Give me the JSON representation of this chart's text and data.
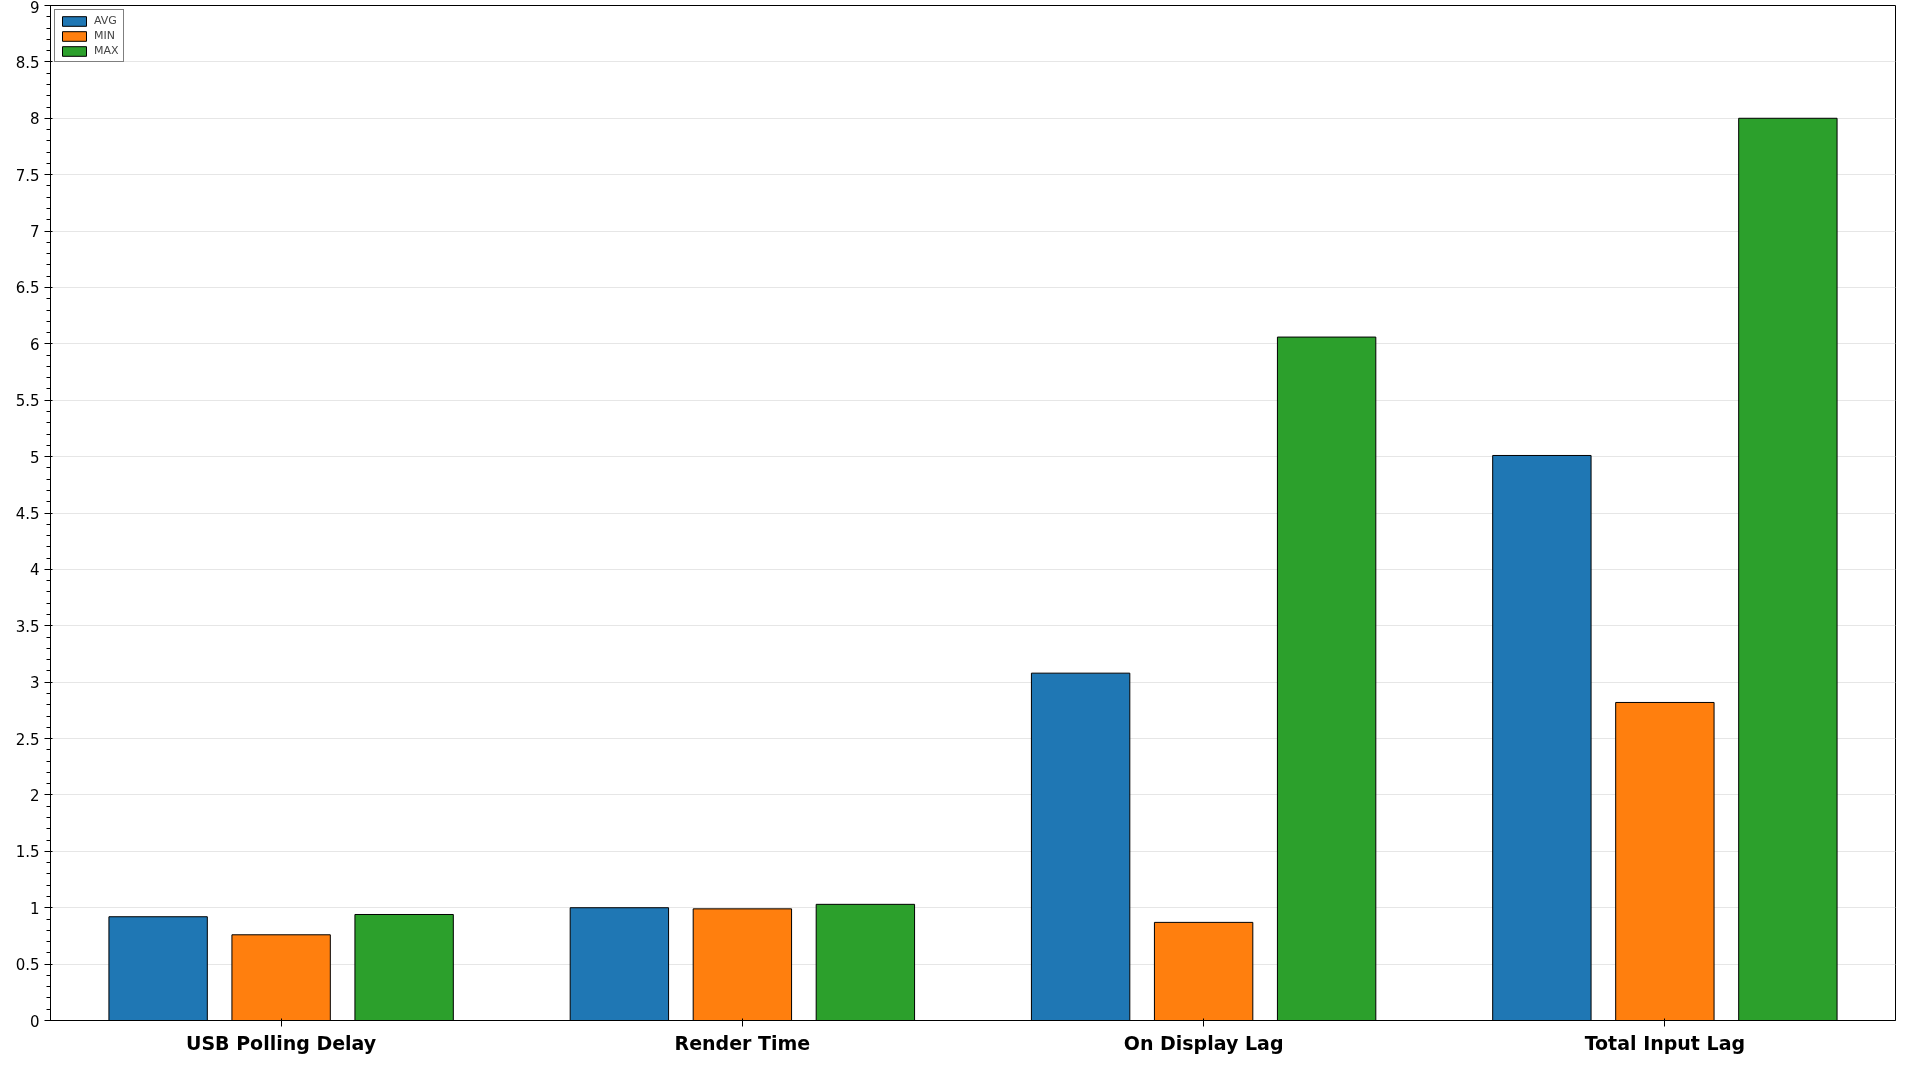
{
  "chart_data": {
    "type": "bar",
    "categories": [
      "USB Polling Delay",
      "Render Time",
      "On Display Lag",
      "Total Input Lag"
    ],
    "series": [
      {
        "name": "AVG",
        "color": "#1f77b4",
        "values": [
          0.92,
          1.0,
          3.08,
          5.01
        ]
      },
      {
        "name": "MIN",
        "color": "#ff7f0e",
        "values": [
          0.76,
          0.99,
          0.87,
          2.82
        ]
      },
      {
        "name": "MAX",
        "color": "#2ca02c",
        "values": [
          0.94,
          1.03,
          6.06,
          8.0
        ]
      }
    ],
    "ylim": [
      0,
      9
    ],
    "yticks": [
      0,
      0.5,
      1,
      1.5,
      2,
      2.5,
      3,
      3.5,
      4,
      4.5,
      5,
      5.5,
      6,
      6.5,
      7,
      7.5,
      8,
      8.5,
      9
    ],
    "grid": "y",
    "legend": "top left"
  }
}
